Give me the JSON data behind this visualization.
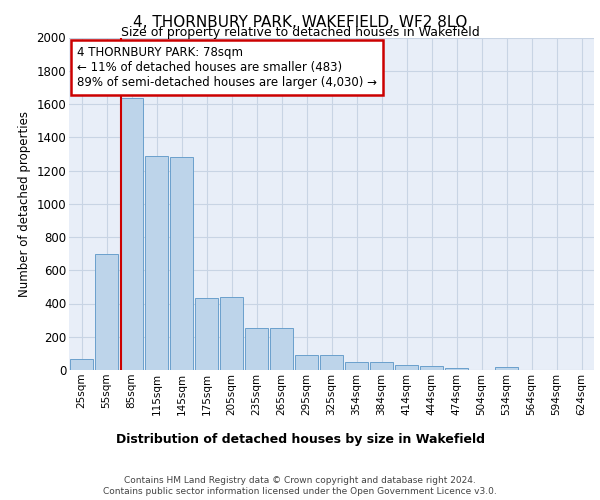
{
  "title": "4, THORNBURY PARK, WAKEFIELD, WF2 8LQ",
  "subtitle": "Size of property relative to detached houses in Wakefield",
  "xlabel": "Distribution of detached houses by size in Wakefield",
  "ylabel": "Number of detached properties",
  "categories": [
    "25sqm",
    "55sqm",
    "85sqm",
    "115sqm",
    "145sqm",
    "175sqm",
    "205sqm",
    "235sqm",
    "265sqm",
    "295sqm",
    "325sqm",
    "354sqm",
    "384sqm",
    "414sqm",
    "444sqm",
    "474sqm",
    "504sqm",
    "534sqm",
    "564sqm",
    "594sqm",
    "624sqm"
  ],
  "values": [
    65,
    695,
    1635,
    1285,
    1280,
    435,
    440,
    250,
    255,
    90,
    90,
    50,
    50,
    30,
    25,
    15,
    0,
    20,
    0,
    0,
    0
  ],
  "bar_color": "#bdd4ea",
  "bar_edge_color": "#6aa0cc",
  "vline_color": "#cc0000",
  "vline_pos": 1.575,
  "annotation_text": "4 THORNBURY PARK: 78sqm\n← 11% of detached houses are smaller (483)\n89% of semi-detached houses are larger (4,030) →",
  "annotation_box_facecolor": "#ffffff",
  "annotation_box_edgecolor": "#cc0000",
  "ylim": [
    0,
    2000
  ],
  "yticks": [
    0,
    200,
    400,
    600,
    800,
    1000,
    1200,
    1400,
    1600,
    1800,
    2000
  ],
  "bg_color": "#e8eef8",
  "grid_color": "#c8d4e4",
  "footer_line1": "Contains HM Land Registry data © Crown copyright and database right 2024.",
  "footer_line2": "Contains public sector information licensed under the Open Government Licence v3.0."
}
